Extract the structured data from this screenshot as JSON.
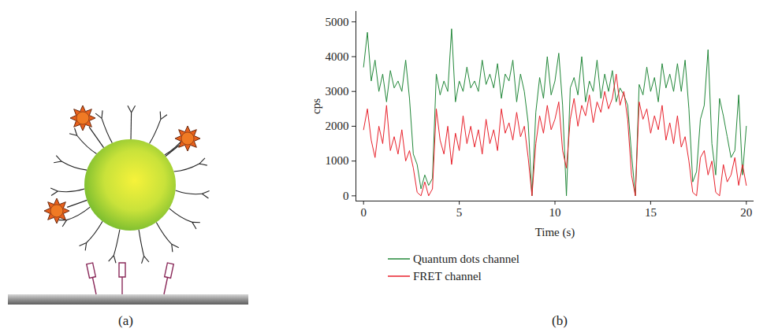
{
  "diagram": {
    "caption": "(a)"
  },
  "chart_data": {
    "type": "line",
    "caption": "(b)",
    "x_label": "Time (s)",
    "y_label": "cps",
    "xlim": [
      -0.4,
      20.4
    ],
    "xticks": [
      0,
      5,
      10,
      15,
      20
    ],
    "ylim": [
      -150,
      5300
    ],
    "yticks": [
      0,
      1000,
      2000,
      3000,
      4000,
      5000
    ],
    "grid": false,
    "legend": "bottom",
    "x": [
      0,
      0.2,
      0.4,
      0.6,
      0.8,
      1,
      1.2,
      1.4,
      1.6,
      1.8,
      2,
      2.2,
      2.4,
      2.6,
      2.8,
      3,
      3.2,
      3.4,
      3.6,
      3.8,
      4,
      4.2,
      4.4,
      4.6,
      4.8,
      5,
      5.2,
      5.4,
      5.6,
      5.8,
      6,
      6.2,
      6.4,
      6.6,
      6.8,
      7,
      7.2,
      7.4,
      7.6,
      7.8,
      8,
      8.2,
      8.4,
      8.6,
      8.8,
      9,
      9.2,
      9.4,
      9.6,
      9.8,
      10,
      10.2,
      10.4,
      10.6,
      10.8,
      11,
      11.2,
      11.4,
      11.6,
      11.8,
      12,
      12.2,
      12.4,
      12.6,
      12.8,
      13,
      13.2,
      13.4,
      13.6,
      13.8,
      14,
      14.2,
      14.4,
      14.6,
      14.8,
      15,
      15.2,
      15.4,
      15.6,
      15.8,
      16,
      16.2,
      16.4,
      16.6,
      16.8,
      17,
      17.2,
      17.4,
      17.6,
      17.8,
      18,
      18.2,
      18.4,
      18.6,
      18.8,
      19,
      19.2,
      19.4,
      19.6,
      19.8,
      20
    ],
    "series": [
      {
        "name": "Quantum dots channel",
        "color": "#23883a",
        "values": [
          3700,
          4700,
          3300,
          3900,
          3000,
          3500,
          2700,
          3600,
          3100,
          3300,
          3000,
          3900,
          2800,
          1200,
          900,
          200,
          600,
          300,
          500,
          3500,
          2900,
          3300,
          3000,
          4800,
          2700,
          3300,
          3000,
          3700,
          3100,
          3300,
          3000,
          3900,
          3200,
          3500,
          3100,
          3800,
          2800,
          3500,
          3300,
          3900,
          2700,
          3500,
          3000,
          2100,
          0,
          2400,
          3400,
          2800,
          4000,
          2900,
          3300,
          4100,
          2600,
          0,
          3100,
          3400,
          2900,
          4000,
          2700,
          3300,
          3000,
          3900,
          2800,
          3500,
          3000,
          3600,
          2700,
          3100,
          2900,
          2600,
          1200,
          0,
          3200,
          2900,
          3700,
          3000,
          3400,
          2700,
          3800,
          3100,
          3500,
          3000,
          3800,
          3000,
          3900,
          2500,
          400,
          700,
          2200,
          2600,
          4200,
          1500,
          600,
          2800,
          2300,
          1700,
          1100,
          1300,
          2900,
          600,
          2000
        ]
      },
      {
        "name": "FRET channel",
        "color": "#e8212b",
        "values": [
          1900,
          2500,
          1600,
          1100,
          2000,
          1500,
          2600,
          1300,
          1700,
          1200,
          1900,
          1000,
          1300,
          800,
          100,
          0,
          400,
          0,
          200,
          2500,
          1600,
          1200,
          2000,
          900,
          1800,
          1300,
          2300,
          1500,
          2000,
          1400,
          1900,
          1200,
          2200,
          1500,
          1900,
          1300,
          2500,
          1800,
          2100,
          1600,
          2400,
          1700,
          2000,
          1100,
          0,
          1500,
          2300,
          1800,
          2600,
          1900,
          2200,
          2700,
          1300,
          800,
          2200,
          2800,
          2000,
          2600,
          2300,
          2900,
          2100,
          2700,
          2400,
          3000,
          2500,
          2800,
          3500,
          2600,
          3000,
          2200,
          600,
          0,
          2700,
          2200,
          2500,
          1800,
          2300,
          1900,
          2600,
          1600,
          2100,
          1500,
          2300,
          1400,
          1700,
          1000,
          100,
          0,
          1100,
          1300,
          600,
          1000,
          100,
          0,
          900,
          400,
          600,
          1100,
          300,
          900,
          300
        ]
      }
    ]
  }
}
